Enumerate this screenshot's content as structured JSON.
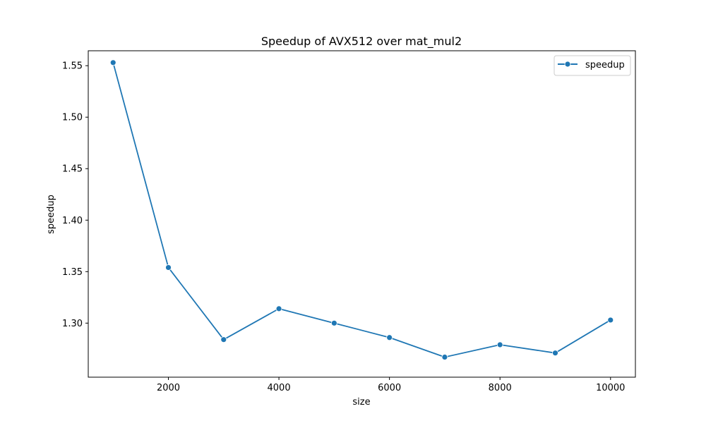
{
  "chart_data": {
    "type": "line",
    "title": "Speedup of AVX512 over mat_mul2",
    "xlabel": "size",
    "ylabel": "speedup",
    "xlim": [
      550,
      10450
    ],
    "ylim": [
      1.2475,
      1.5645
    ],
    "xticks": [
      2000,
      4000,
      6000,
      8000,
      10000
    ],
    "xtick_labels": [
      "2000",
      "4000",
      "6000",
      "8000",
      "10000"
    ],
    "yticks": [
      1.3,
      1.35,
      1.4,
      1.45,
      1.5,
      1.55
    ],
    "ytick_labels": [
      "1.30",
      "1.35",
      "1.40",
      "1.45",
      "1.50",
      "1.55"
    ],
    "grid": false,
    "legend_position": "top-right",
    "series": [
      {
        "name": "speedup",
        "color": "#1f77b4",
        "marker": "circle",
        "x": [
          1000,
          2000,
          3000,
          4000,
          5000,
          6000,
          7000,
          8000,
          9000,
          10000
        ],
        "y": [
          1.553,
          1.354,
          1.284,
          1.314,
          1.3,
          1.286,
          1.267,
          1.279,
          1.271,
          1.303
        ]
      }
    ]
  }
}
